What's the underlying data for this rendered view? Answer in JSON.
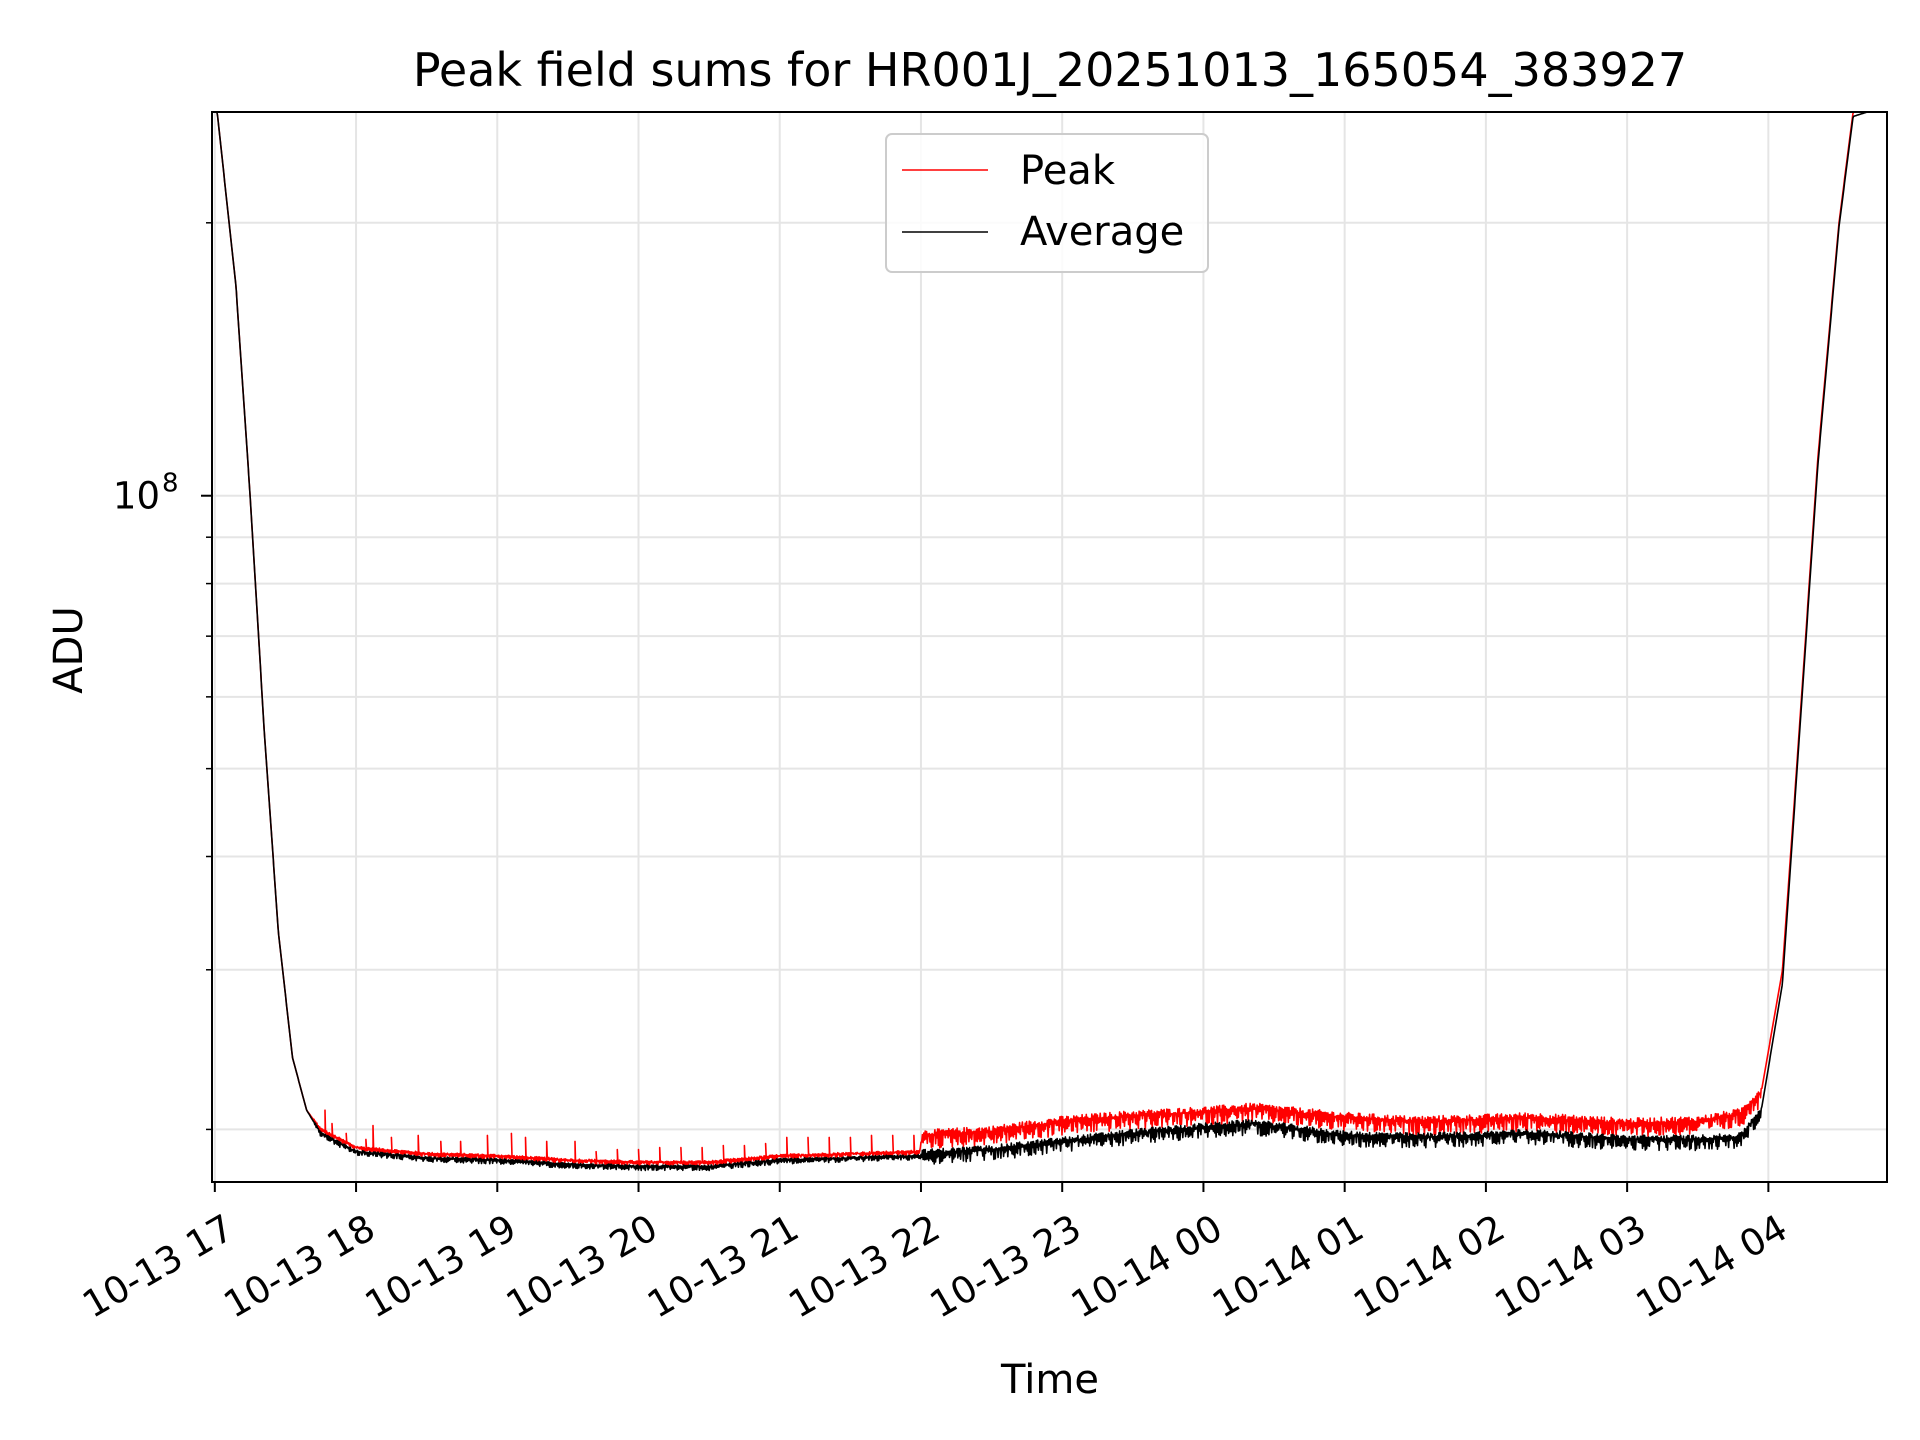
{
  "chart_data": {
    "type": "line",
    "title": "Peak field sums for HR001J_20251013_165054_383927",
    "xlabel": "Time",
    "ylabel": "ADU",
    "yscale": "log",
    "ylim": [
      17500000,
      265000000
    ],
    "xlim_hours": [
      16.98,
      28.84
    ],
    "grid": true,
    "legend_position": "top-center",
    "x_tick_hours": [
      17,
      18,
      19,
      20,
      21,
      22,
      23,
      24,
      25,
      26,
      27,
      28
    ],
    "x_tick_labels": [
      "10-13 17",
      "10-13 18",
      "10-13 19",
      "10-13 20",
      "10-13 21",
      "10-13 22",
      "10-13 23",
      "10-14 00",
      "10-14 01",
      "10-14 02",
      "10-14 03",
      "10-14 04"
    ],
    "y_major_ticks": [
      {
        "value": 100000000,
        "label_base": "10",
        "label_exp": "8"
      }
    ],
    "y_minor_ticks": [
      20000000,
      30000000,
      40000000,
      50000000,
      60000000,
      70000000,
      80000000,
      90000000,
      200000000
    ],
    "series": [
      {
        "name": "Peak",
        "color": "#ff0000",
        "baseline": [
          [
            17.0,
            280000000
          ],
          [
            17.15,
            170000000
          ],
          [
            17.25,
            100000000
          ],
          [
            17.35,
            55000000
          ],
          [
            17.45,
            33000000
          ],
          [
            17.55,
            24000000
          ],
          [
            17.65,
            21000000
          ],
          [
            17.75,
            20000000
          ],
          [
            18.0,
            19100000
          ],
          [
            18.5,
            18800000
          ],
          [
            19.0,
            18700000
          ],
          [
            19.5,
            18500000
          ],
          [
            20.0,
            18400000
          ],
          [
            20.5,
            18400000
          ],
          [
            21.0,
            18700000
          ],
          [
            21.99,
            18900000
          ],
          [
            22.01,
            19700000
          ],
          [
            22.5,
            19900000
          ],
          [
            23.0,
            20400000
          ],
          [
            23.5,
            20700000
          ],
          [
            24.0,
            20900000
          ],
          [
            24.35,
            21100000
          ],
          [
            25.0,
            20600000
          ],
          [
            25.5,
            20400000
          ],
          [
            26.0,
            20500000
          ],
          [
            26.3,
            20600000
          ],
          [
            27.0,
            20300000
          ],
          [
            27.5,
            20400000
          ],
          [
            27.8,
            20800000
          ],
          [
            27.95,
            22000000
          ],
          [
            28.1,
            30000000
          ],
          [
            28.2,
            50000000
          ],
          [
            28.35,
            110000000
          ],
          [
            28.5,
            200000000
          ],
          [
            28.6,
            265000000
          ],
          [
            28.8,
            270000000
          ]
        ],
        "spikes": [
          [
            17.78,
            21000000
          ],
          [
            17.83,
            20300000
          ],
          [
            17.93,
            19800000
          ],
          [
            18.07,
            19500000
          ],
          [
            18.12,
            20200000
          ],
          [
            18.25,
            19600000
          ],
          [
            18.44,
            19700000
          ],
          [
            18.6,
            19400000
          ],
          [
            18.74,
            19400000
          ],
          [
            18.93,
            19700000
          ],
          [
            19.1,
            19800000
          ],
          [
            19.2,
            19600000
          ],
          [
            19.35,
            19400000
          ],
          [
            19.55,
            19400000
          ],
          [
            19.7,
            18900000
          ],
          [
            19.85,
            19000000
          ],
          [
            20.0,
            19000000
          ],
          [
            20.15,
            19100000
          ],
          [
            20.3,
            19100000
          ],
          [
            20.45,
            19100000
          ],
          [
            20.6,
            19200000
          ],
          [
            20.75,
            19200000
          ],
          [
            20.9,
            19300000
          ],
          [
            21.05,
            19600000
          ],
          [
            21.2,
            19600000
          ],
          [
            21.35,
            19600000
          ],
          [
            21.5,
            19600000
          ],
          [
            21.65,
            19700000
          ],
          [
            21.8,
            19700000
          ],
          [
            21.95,
            19700000
          ]
        ]
      },
      {
        "name": "Average",
        "color": "#000000",
        "baseline": [
          [
            17.0,
            280000000
          ],
          [
            17.15,
            170000000
          ],
          [
            17.25,
            100000000
          ],
          [
            17.35,
            55000000
          ],
          [
            17.45,
            33000000
          ],
          [
            17.55,
            24000000
          ],
          [
            17.65,
            21000000
          ],
          [
            17.75,
            19800000
          ],
          [
            18.0,
            18900000
          ],
          [
            18.5,
            18600000
          ],
          [
            19.0,
            18500000
          ],
          [
            19.5,
            18300000
          ],
          [
            20.0,
            18200000
          ],
          [
            20.5,
            18200000
          ],
          [
            21.0,
            18500000
          ],
          [
            21.99,
            18700000
          ],
          [
            22.01,
            18800000
          ],
          [
            22.5,
            19000000
          ],
          [
            23.0,
            19400000
          ],
          [
            23.5,
            19800000
          ],
          [
            24.0,
            20100000
          ],
          [
            24.35,
            20300000
          ],
          [
            25.0,
            19700000
          ],
          [
            25.5,
            19600000
          ],
          [
            26.0,
            19700000
          ],
          [
            26.3,
            19800000
          ],
          [
            27.0,
            19500000
          ],
          [
            27.5,
            19500000
          ],
          [
            27.8,
            19600000
          ],
          [
            27.95,
            21000000
          ],
          [
            28.1,
            29000000
          ],
          [
            28.2,
            49000000
          ],
          [
            28.35,
            108000000
          ],
          [
            28.5,
            198000000
          ],
          [
            28.6,
            262000000
          ],
          [
            28.8,
            268000000
          ]
        ]
      }
    ]
  }
}
